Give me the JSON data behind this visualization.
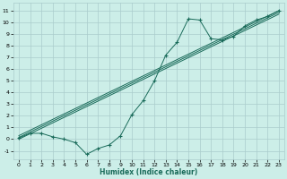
{
  "title": "",
  "xlabel": "Humidex (Indice chaleur)",
  "bg_color": "#cceee8",
  "grid_color": "#aacccc",
  "line_color": "#1a6b5a",
  "xlim": [
    -0.5,
    23.5
  ],
  "ylim": [
    -1.7,
    11.7
  ],
  "xticks": [
    0,
    1,
    2,
    3,
    4,
    5,
    6,
    7,
    8,
    9,
    10,
    11,
    12,
    13,
    14,
    15,
    16,
    17,
    18,
    19,
    20,
    21,
    22,
    23
  ],
  "yticks": [
    -1,
    0,
    1,
    2,
    3,
    4,
    5,
    6,
    7,
    8,
    9,
    10,
    11
  ],
  "curve1_x": [
    0,
    1,
    2,
    3,
    4,
    5,
    6,
    7,
    8,
    9,
    10,
    11,
    12,
    13,
    14,
    15,
    16,
    17,
    18,
    19,
    20,
    21,
    22,
    23
  ],
  "curve1_y": [
    0.1,
    0.5,
    0.5,
    0.2,
    0.0,
    -0.3,
    -1.3,
    -0.8,
    -0.5,
    0.3,
    2.1,
    3.3,
    5.0,
    7.2,
    8.3,
    10.3,
    10.2,
    8.6,
    8.5,
    8.8,
    9.7,
    10.2,
    10.5,
    11.0
  ],
  "line1_x": [
    0,
    23
  ],
  "line1_y": [
    0.3,
    11.0
  ],
  "line2_x": [
    0,
    23
  ],
  "line2_y": [
    0.0,
    10.7
  ],
  "line3_x": [
    0,
    23
  ],
  "line3_y": [
    0.15,
    10.85
  ]
}
